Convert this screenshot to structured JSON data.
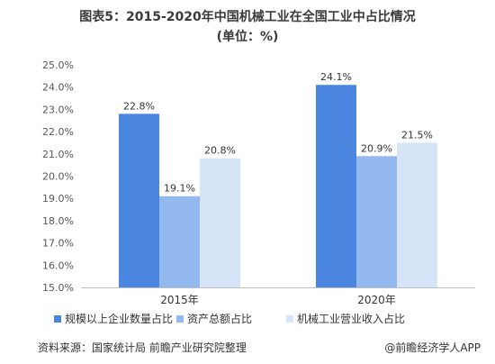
{
  "title_line1": "图表5：2015-2020年中国机械工业在全国工业中占比情况",
  "title_line2": "(单位：%)",
  "chart_data": {
    "type": "bar",
    "categories": [
      "2015年",
      "2020年"
    ],
    "series": [
      {
        "name": "规模以上企业数量占比",
        "values": [
          22.8,
          24.1
        ],
        "labels": [
          "22.8%",
          "24.1%"
        ],
        "color": "#4a86e0"
      },
      {
        "name": "资产总额占比",
        "values": [
          19.1,
          20.9
        ],
        "labels": [
          "19.1%",
          "20.9%"
        ],
        "color": "#93b9ee"
      },
      {
        "name": "机械工业营业收入占比",
        "values": [
          20.8,
          21.5
        ],
        "labels": [
          "20.8%",
          "21.5%"
        ],
        "color": "#d6e4f7"
      }
    ],
    "ylim": [
      15.0,
      25.0
    ],
    "yticks": [
      "15.0%",
      "16.0%",
      "17.0%",
      "18.0%",
      "19.0%",
      "20.0%",
      "21.0%",
      "22.0%",
      "23.0%",
      "24.0%",
      "25.0%"
    ],
    "legend_position": "bottom",
    "grid": false
  },
  "source_text": "资料来源：国家统计局 前瞻产业研究院整理",
  "brand_text": "@前瞻经济学人APP"
}
